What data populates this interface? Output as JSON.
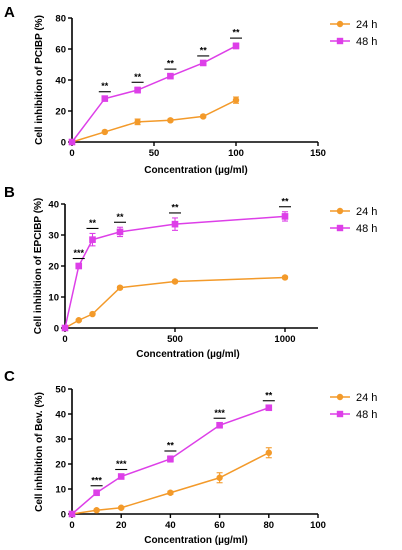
{
  "colors": {
    "orange": "#f39a2a",
    "magenta": "#dd3fe8",
    "axis": "#000000"
  },
  "chart_data": [
    {
      "type": "line",
      "panel_label": "A",
      "xlabel": "Concentration (µg/ml)",
      "ylabel": "Cell inhibition of PCIBP (%)",
      "xlim": [
        0,
        150
      ],
      "ylim": [
        0,
        80
      ],
      "xticks": [
        0,
        50,
        100,
        150
      ],
      "yticks": [
        0,
        20,
        40,
        60,
        80
      ],
      "legend_placement": "top-right",
      "series": [
        {
          "name": "24 h",
          "color": "#f39a2a",
          "marker": "circle",
          "x": [
            0,
            20,
            40,
            60,
            80,
            100
          ],
          "y": [
            0,
            6.5,
            13,
            14,
            16.5,
            27
          ],
          "err": [
            0,
            0.6,
            1.8,
            0.8,
            0.8,
            2
          ]
        },
        {
          "name": "48 h",
          "color": "#dd3fe8",
          "marker": "square",
          "x": [
            0,
            20,
            40,
            60,
            80,
            100
          ],
          "y": [
            0,
            28,
            33.5,
            42.5,
            51,
            62
          ],
          "err": [
            0,
            1.2,
            1.8,
            1.3,
            1.3,
            1.8
          ]
        }
      ],
      "significance": [
        {
          "x": 20,
          "label": "**"
        },
        {
          "x": 40,
          "label": "**"
        },
        {
          "x": 60,
          "label": "**"
        },
        {
          "x": 80,
          "label": "**"
        },
        {
          "x": 100,
          "label": "**"
        }
      ]
    },
    {
      "type": "line",
      "panel_label": "B",
      "xlabel": "Concentration (µg/ml)",
      "ylabel": "Cell inhibition of EPCIBP (%)",
      "xlim": [
        0,
        1150
      ],
      "ylim": [
        0,
        40
      ],
      "xticks": [
        0,
        500,
        1000
      ],
      "yticks": [
        0,
        10,
        20,
        30,
        40
      ],
      "legend_placement": "top-right",
      "series": [
        {
          "name": "24 h",
          "color": "#f39a2a",
          "marker": "circle",
          "x": [
            0,
            62.5,
            125,
            250,
            500,
            1000
          ],
          "y": [
            0,
            2.5,
            4.5,
            13,
            15,
            16.3
          ],
          "err": [
            0,
            0.3,
            0.3,
            0.4,
            0.4,
            0.4
          ]
        },
        {
          "name": "48 h",
          "color": "#dd3fe8",
          "marker": "square",
          "x": [
            0,
            62.5,
            125,
            250,
            500,
            1000
          ],
          "y": [
            0,
            20,
            28.5,
            31,
            33.5,
            36
          ],
          "err": [
            0,
            0.8,
            2,
            1.5,
            2,
            1.5
          ]
        }
      ],
      "significance": [
        {
          "x": 62.5,
          "label": "***"
        },
        {
          "x": 125,
          "label": "**"
        },
        {
          "x": 250,
          "label": "**"
        },
        {
          "x": 500,
          "label": "**"
        },
        {
          "x": 1000,
          "label": "**"
        }
      ]
    },
    {
      "type": "line",
      "panel_label": "C",
      "xlabel": "Concentration (µg/ml)",
      "ylabel": "Cell inhibition of Bev. (%)",
      "xlim": [
        0,
        100
      ],
      "ylim": [
        0,
        50
      ],
      "xticks": [
        0,
        20,
        40,
        60,
        80,
        100
      ],
      "yticks": [
        0,
        10,
        20,
        30,
        40,
        50
      ],
      "legend_placement": "top-right",
      "series": [
        {
          "name": "24 h",
          "color": "#f39a2a",
          "marker": "circle",
          "x": [
            0,
            10,
            20,
            40,
            60,
            80
          ],
          "y": [
            0,
            1.5,
            2.5,
            8.5,
            14.5,
            24.5
          ],
          "err": [
            0,
            0.4,
            0.4,
            0.6,
            2,
            2
          ]
        },
        {
          "name": "48 h",
          "color": "#dd3fe8",
          "marker": "square",
          "x": [
            0,
            10,
            20,
            40,
            60,
            80
          ],
          "y": [
            0,
            8.5,
            15,
            22,
            35.5,
            42.5
          ],
          "err": [
            0,
            0.8,
            0.8,
            1.2,
            0.8,
            0.8
          ]
        }
      ],
      "significance": [
        {
          "x": 10,
          "label": "***"
        },
        {
          "x": 20,
          "label": "***"
        },
        {
          "x": 40,
          "label": "**"
        },
        {
          "x": 60,
          "label": "***"
        },
        {
          "x": 80,
          "label": "**"
        }
      ]
    }
  ]
}
